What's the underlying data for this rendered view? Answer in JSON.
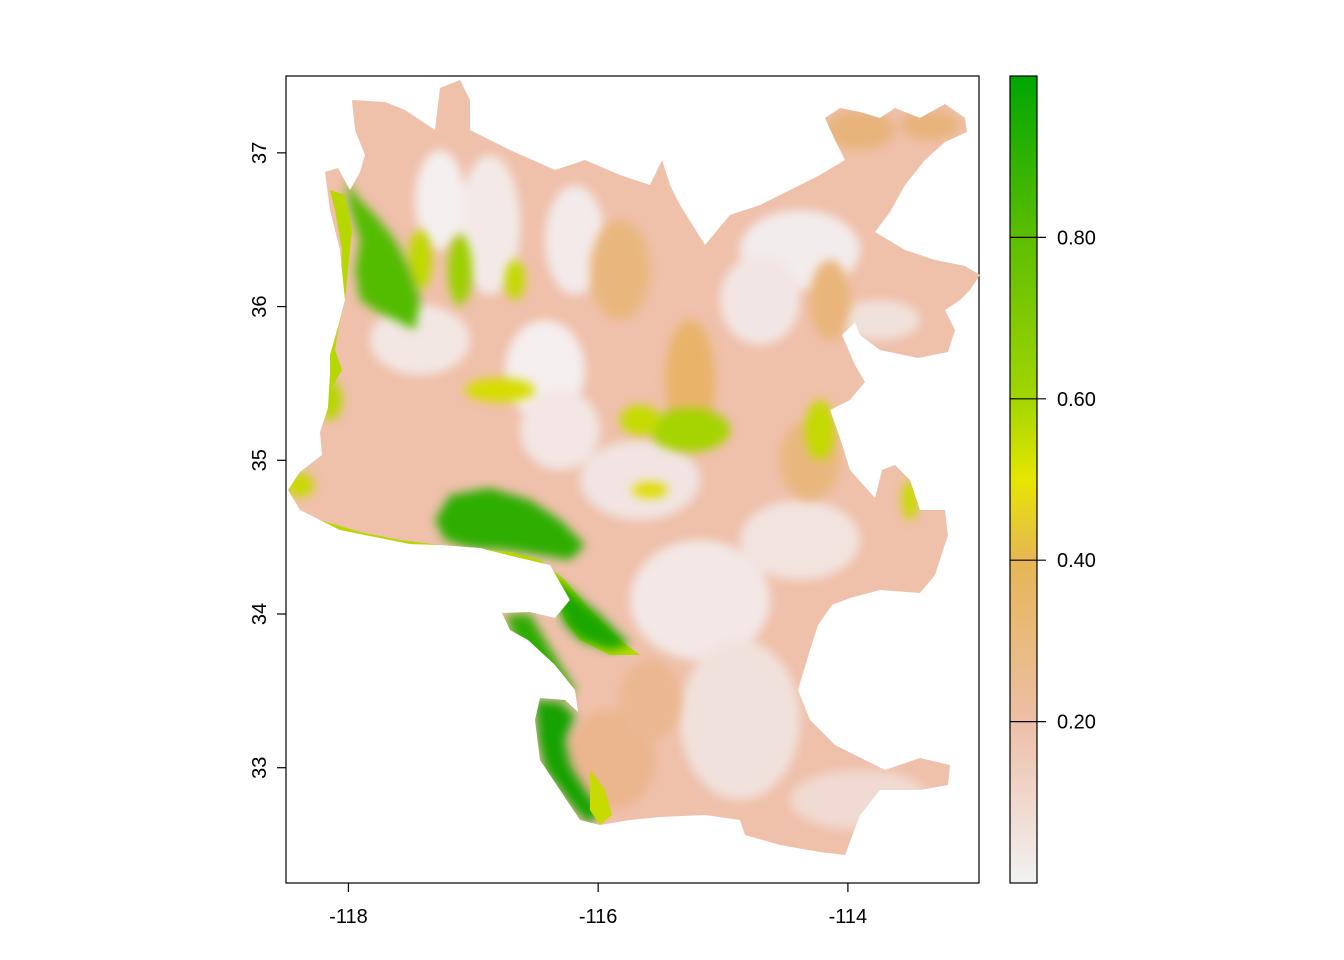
{
  "map": {
    "x_axis": {
      "range": [
        -118.5,
        -112.95
      ],
      "ticks": [
        {
          "value": -118,
          "label": "-118"
        },
        {
          "value": -116,
          "label": "-116"
        },
        {
          "value": -114,
          "label": "-114"
        }
      ]
    },
    "y_axis": {
      "range": [
        32.25,
        37.5
      ],
      "ticks": [
        {
          "value": 33,
          "label": "33"
        },
        {
          "value": 34,
          "label": "34"
        },
        {
          "value": 35,
          "label": "35"
        },
        {
          "value": 36,
          "label": "36"
        },
        {
          "value": 37,
          "label": "37"
        }
      ]
    },
    "legend": {
      "placement": "right",
      "range": [
        0.0,
        1.0
      ],
      "ticks": [
        {
          "value": 0.2,
          "label": "0.20"
        },
        {
          "value": 0.4,
          "label": "0.40"
        },
        {
          "value": 0.6,
          "label": "0.60"
        },
        {
          "value": 0.8,
          "label": "0.80"
        }
      ],
      "colors": [
        {
          "stop": 0.0,
          "color": "#F2F2F2"
        },
        {
          "stop": 0.2,
          "color": "#EDBFA6"
        },
        {
          "stop": 0.4,
          "color": "#E6B655"
        },
        {
          "stop": 0.5,
          "color": "#E6E600"
        },
        {
          "stop": 0.6,
          "color": "#A2D600"
        },
        {
          "stop": 0.8,
          "color": "#5CBE00"
        },
        {
          "stop": 1.0,
          "color": "#00A600"
        }
      ]
    },
    "region_fill": "#EFC0AA",
    "high_value_color": "#1EA800"
  }
}
